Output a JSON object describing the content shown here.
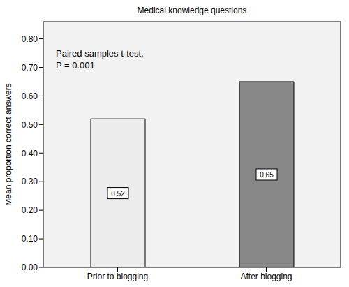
{
  "chart_data": {
    "type": "bar",
    "title": "Medical knowledge questions",
    "y_label": "Mean proportion correct answers",
    "annotation": [
      "Paired samples t-test,",
      "P = 0.001"
    ],
    "categories": [
      "Prior to blogging",
      "After blogging"
    ],
    "values": [
      0.52,
      0.65
    ],
    "colors": [
      "#ececec",
      "#878787"
    ],
    "ylim": [
      0,
      0.86
    ],
    "yticks": [
      {
        "value": 0,
        "label": "0.00"
      },
      {
        "value": 0.1,
        "label": "0.10"
      },
      {
        "value": 0.2,
        "label": "0.20"
      },
      {
        "value": 0.3,
        "label": "0.30"
      },
      {
        "value": 0.4,
        "label": "0.40"
      },
      {
        "value": 0.5,
        "label": "0.50"
      },
      {
        "value": 0.6,
        "label": "0.60"
      },
      {
        "value": 0.7,
        "label": "0.70"
      },
      {
        "value": 0.8,
        "label": "0.80"
      }
    ],
    "data_labels": true
  }
}
